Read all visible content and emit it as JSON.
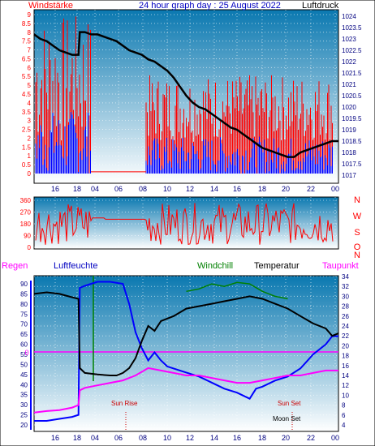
{
  "colors": {
    "red": "#ff0000",
    "blue": "#0000ff",
    "black": "#000000",
    "green": "#008000",
    "magenta": "#ff00ff",
    "navy": "#000080",
    "sky_top": "#0a78b0",
    "sky_bottom": "#ffffff",
    "axis_text": "#000080"
  },
  "header": {
    "left_label": "Windstärke",
    "title": "24 hour graph day : 25 August 2022",
    "right_label": "Luftdruck"
  },
  "bottom_header": {
    "regen": "Regen",
    "luftfeuchte": "Luftfeuchte",
    "windchill": "Windchill",
    "temperatur": "Temperatur",
    "taupunkt": "Taupunkt"
  },
  "annotations": {
    "sun_rise": "Sun Rise",
    "sun_set": "Sun Set",
    "moon_set": "Moon Set",
    "regen_zero": "0"
  },
  "chart_data": [
    {
      "type": "line",
      "title": "24 hour graph day : 25 August 2022",
      "xlabel": "",
      "ylabel_left": "Windstärke",
      "ylabel_right": "Luftdruck",
      "x_ticks": [
        "16",
        "18",
        "04",
        "06",
        "08",
        "10",
        "12",
        "14",
        "16",
        "18",
        "20",
        "22",
        "00"
      ],
      "y_left_ticks": [
        "0",
        "0.5",
        "1",
        "1.5",
        "2",
        "2.5",
        "3",
        "3.5",
        "4",
        "4.5",
        "5",
        "5.5",
        "6",
        "6.5",
        "7",
        "7.5",
        "8",
        "8.5",
        "9"
      ],
      "y_right_ticks": [
        "1017",
        "1017.5",
        "1018",
        "1018.5",
        "1019",
        "1019.5",
        "1020",
        "1020.5",
        "1021",
        "1021.5",
        "1022",
        "1022.5",
        "1023",
        "1023.5",
        "1024"
      ],
      "ylim_left": [
        0,
        9.5
      ],
      "ylim_right": [
        1016.8,
        1024.5
      ],
      "grid": true,
      "series": [
        {
          "name": "Luftdruck",
          "color": "#000000",
          "axis": "right",
          "x": [
            0,
            0.5,
            1,
            1.5,
            2,
            2.5,
            3,
            3.5,
            3.6,
            4,
            4.5,
            5,
            5.5,
            6,
            6.5,
            7,
            7.5,
            8,
            8.5,
            9,
            9.5,
            10,
            10.5,
            11,
            11.5,
            12,
            12.5,
            13,
            13.5,
            14,
            14.5,
            15,
            15.5,
            16,
            16.5,
            17,
            17.5,
            18,
            18.5,
            19,
            19.5,
            20,
            20.5,
            21,
            21.5,
            22,
            22.5,
            23,
            23.5,
            24
          ],
          "values": [
            1023.2,
            1023.0,
            1022.9,
            1022.7,
            1022.5,
            1022.4,
            1022.3,
            1022.3,
            1023.3,
            1023.3,
            1023.2,
            1023.2,
            1023.1,
            1023.0,
            1022.9,
            1022.7,
            1022.5,
            1022.4,
            1022.3,
            1022.1,
            1022.0,
            1021.8,
            1021.6,
            1021.3,
            1020.9,
            1020.5,
            1020.2,
            1020.0,
            1019.9,
            1019.7,
            1019.5,
            1019.3,
            1019.1,
            1019.0,
            1018.8,
            1018.6,
            1018.4,
            1018.2,
            1018.1,
            1018.0,
            1017.9,
            1017.8,
            1017.8,
            1018.0,
            1018.1,
            1018.2,
            1018.3,
            1018.4,
            1018.5,
            1018.5
          ]
        }
      ]
    },
    {
      "type": "line",
      "title": "",
      "ylabel_left": "",
      "ylabel_right": "",
      "y_left_ticks": [
        "0",
        "90",
        "180",
        "270",
        "360"
      ],
      "y_right_ticks": [
        "N",
        "W",
        "S",
        "O",
        "N"
      ],
      "ylim": [
        0,
        360
      ],
      "grid": true,
      "series": [
        {
          "name": "",
          "color": "#ff0000"
        }
      ]
    },
    {
      "type": "line",
      "title": "",
      "x_ticks": [
        "16",
        "18",
        "04",
        "06",
        "08",
        "10",
        "12",
        "14",
        "16",
        "18",
        "20",
        "22",
        "00"
      ],
      "y_left_ticks": [
        "20",
        "25",
        "30",
        "35",
        "40",
        "45",
        "50",
        "55",
        "60",
        "65",
        "70",
        "75",
        "80",
        "85",
        "90"
      ],
      "y_right_ticks": [
        "4",
        "6",
        "8",
        "10",
        "12",
        "14",
        "16",
        "18",
        "20",
        "22",
        "24",
        "26",
        "28",
        "30",
        "32",
        "34"
      ],
      "ylim_left": [
        18,
        94
      ],
      "ylim_right": [
        3.5,
        34.5
      ],
      "grid": true,
      "series": [
        {
          "name": "Luftfeuchte",
          "color": "#0000ff",
          "axis": "left",
          "x": [
            0,
            1,
            2,
            3,
            3.5,
            3.6,
            4,
            4.5,
            5,
            6,
            7,
            7.5,
            8,
            8.5,
            9,
            9.5,
            10,
            10.5,
            11,
            12,
            13,
            14,
            15,
            16,
            17,
            17.5,
            18,
            19,
            20,
            21,
            22,
            23,
            23.5,
            24
          ],
          "values": [
            22,
            22,
            23,
            24,
            25,
            88,
            89,
            90,
            91,
            91,
            90,
            80,
            66,
            58,
            52,
            56,
            52,
            49,
            48,
            46,
            44,
            41,
            38,
            36,
            33,
            38,
            39,
            42,
            44,
            48,
            55,
            60,
            64,
            64
          ]
        },
        {
          "name": "Temperatur",
          "color": "#000000",
          "axis": "right",
          "x": [
            0,
            1,
            2,
            3,
            3.5,
            3.6,
            4,
            5,
            6,
            6.5,
            7,
            7.5,
            8,
            8.5,
            9,
            9.5,
            10,
            11,
            12,
            13,
            14,
            15,
            16,
            17,
            18,
            19,
            20,
            21,
            22,
            23,
            23.5,
            24
          ],
          "values": [
            30.5,
            30.8,
            30.5,
            29.8,
            29.5,
            15.5,
            14.5,
            14.2,
            14.0,
            14.0,
            14.5,
            15.5,
            17.5,
            21,
            24,
            23,
            25,
            26,
            27.5,
            28,
            28.5,
            29,
            29.5,
            30,
            29.5,
            28.5,
            27.5,
            26,
            24.5,
            23.5,
            22,
            22.5
          ]
        },
        {
          "name": "Windchill",
          "color": "#008000",
          "axis": "right",
          "x": [
            12,
            13,
            14,
            15,
            16,
            17,
            18,
            19,
            20
          ],
          "values": [
            31,
            31.5,
            32.5,
            32,
            32.8,
            32.5,
            31,
            30,
            29.5
          ]
        },
        {
          "name": "Taupunkt",
          "color": "#ff00ff",
          "axis": "right",
          "x": [
            0,
            1,
            2,
            3,
            3.5,
            3.6,
            4,
            5,
            6,
            7,
            8,
            9,
            10,
            11,
            12,
            13,
            14,
            15,
            16,
            17,
            18,
            19,
            20,
            21,
            22,
            23,
            24
          ],
          "values": [
            6.5,
            6.8,
            7,
            7.5,
            8,
            11,
            11.5,
            12,
            12.5,
            13,
            14,
            15.5,
            15,
            14.5,
            14,
            14,
            13.5,
            13,
            12.5,
            12.5,
            13,
            13.5,
            14,
            14,
            14.5,
            15,
            15
          ]
        }
      ]
    }
  ]
}
